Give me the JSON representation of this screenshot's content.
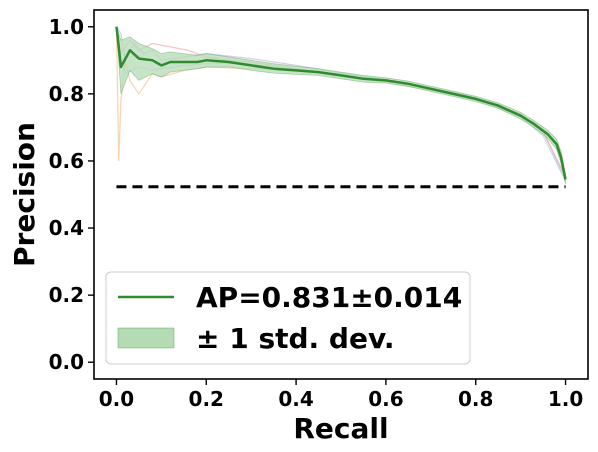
{
  "chart_data": {
    "type": "line",
    "xlabel": "Recall",
    "ylabel": "Precision",
    "xlim": [
      -0.05,
      1.05
    ],
    "ylim": [
      -0.05,
      1.05
    ],
    "xticks": [
      0.0,
      0.2,
      0.4,
      0.6,
      0.8,
      1.0
    ],
    "xtick_labels": [
      "0.0",
      "0.2",
      "0.4",
      "0.6",
      "0.8",
      "1.0"
    ],
    "yticks": [
      0.0,
      0.2,
      0.4,
      0.6,
      0.8,
      1.0
    ],
    "ytick_labels": [
      "0.0",
      "0.2",
      "0.4",
      "0.6",
      "0.8",
      "1.0"
    ],
    "grid": false,
    "legend_position": "bottom-left",
    "colors": {
      "mean": "#2e8b2e",
      "band": "#b5dbb5",
      "baseline": "#000000",
      "fold_a": "#f6c89a",
      "fold_b": "#c8c3e6",
      "fold_c": "#f3b4b4",
      "fold_d": "#b7d8ea"
    },
    "legend": [
      {
        "label": "AP=0.831±0.014",
        "kind": "line"
      },
      {
        "label": "± 1 std. dev.",
        "kind": "band"
      }
    ],
    "series": [
      {
        "role": "mean",
        "x": [
          0.0,
          0.01,
          0.03,
          0.05,
          0.08,
          0.1,
          0.12,
          0.15,
          0.18,
          0.2,
          0.25,
          0.3,
          0.35,
          0.4,
          0.45,
          0.5,
          0.55,
          0.6,
          0.65,
          0.7,
          0.75,
          0.8,
          0.85,
          0.9,
          0.93,
          0.96,
          0.98,
          0.99,
          1.0
        ],
        "y": [
          1.0,
          0.88,
          0.93,
          0.905,
          0.9,
          0.885,
          0.895,
          0.895,
          0.895,
          0.9,
          0.895,
          0.885,
          0.875,
          0.87,
          0.865,
          0.855,
          0.845,
          0.84,
          0.83,
          0.815,
          0.8,
          0.785,
          0.765,
          0.735,
          0.71,
          0.68,
          0.65,
          0.61,
          0.545
        ]
      },
      {
        "role": "band_upper",
        "x": [
          0.0,
          0.01,
          0.03,
          0.05,
          0.08,
          0.1,
          0.12,
          0.15,
          0.18,
          0.2,
          0.25,
          0.3,
          0.35,
          0.4,
          0.45,
          0.5,
          0.55,
          0.6,
          0.65,
          0.7,
          0.75,
          0.8,
          0.85,
          0.9,
          0.93,
          0.96,
          0.98,
          0.99,
          1.0
        ],
        "y": [
          1.0,
          0.96,
          0.97,
          0.95,
          0.935,
          0.92,
          0.925,
          0.92,
          0.915,
          0.92,
          0.91,
          0.9,
          0.89,
          0.882,
          0.875,
          0.865,
          0.855,
          0.848,
          0.838,
          0.823,
          0.808,
          0.793,
          0.773,
          0.745,
          0.72,
          0.692,
          0.665,
          0.628,
          0.56
        ]
      },
      {
        "role": "band_lower",
        "x": [
          0.0,
          0.01,
          0.03,
          0.05,
          0.08,
          0.1,
          0.12,
          0.15,
          0.18,
          0.2,
          0.25,
          0.3,
          0.35,
          0.4,
          0.45,
          0.5,
          0.55,
          0.6,
          0.65,
          0.7,
          0.75,
          0.8,
          0.85,
          0.9,
          0.93,
          0.96,
          0.98,
          0.99,
          1.0
        ],
        "y": [
          1.0,
          0.8,
          0.87,
          0.84,
          0.86,
          0.85,
          0.865,
          0.87,
          0.875,
          0.88,
          0.88,
          0.87,
          0.862,
          0.858,
          0.855,
          0.845,
          0.835,
          0.832,
          0.822,
          0.807,
          0.792,
          0.777,
          0.757,
          0.725,
          0.7,
          0.668,
          0.635,
          0.592,
          0.53
        ]
      },
      {
        "role": "fold",
        "color_key": "fold_a",
        "x": [
          0.0,
          0.005,
          0.01,
          0.02,
          0.03,
          0.05,
          0.08,
          0.1,
          0.15,
          0.2,
          0.3,
          0.4,
          0.5,
          0.6,
          0.7,
          0.8,
          0.9,
          0.95,
          1.0
        ],
        "y": [
          1.0,
          0.6,
          0.78,
          0.9,
          0.84,
          0.8,
          0.86,
          0.85,
          0.87,
          0.88,
          0.875,
          0.87,
          0.855,
          0.835,
          0.81,
          0.785,
          0.735,
          0.69,
          0.55
        ]
      },
      {
        "role": "fold",
        "color_key": "fold_b",
        "x": [
          0.0,
          0.01,
          0.02,
          0.04,
          0.06,
          0.08,
          0.1,
          0.15,
          0.2,
          0.3,
          0.4,
          0.5,
          0.6,
          0.7,
          0.8,
          0.9,
          0.95,
          1.0
        ],
        "y": [
          1.0,
          0.98,
          0.9,
          0.95,
          0.92,
          0.93,
          0.9,
          0.91,
          0.92,
          0.905,
          0.885,
          0.862,
          0.842,
          0.818,
          0.79,
          0.74,
          0.69,
          0.54
        ]
      },
      {
        "role": "fold",
        "color_key": "fold_c",
        "x": [
          0.0,
          0.01,
          0.03,
          0.05,
          0.08,
          0.12,
          0.16,
          0.2,
          0.25,
          0.3,
          0.4,
          0.5,
          0.6,
          0.7,
          0.8,
          0.9,
          0.95,
          1.0
        ],
        "y": [
          1.0,
          0.92,
          0.96,
          0.93,
          0.95,
          0.94,
          0.93,
          0.91,
          0.9,
          0.895,
          0.875,
          0.857,
          0.838,
          0.815,
          0.788,
          0.738,
          0.685,
          0.555
        ]
      },
      {
        "role": "fold",
        "color_key": "fold_d",
        "x": [
          0.0,
          0.01,
          0.02,
          0.05,
          0.08,
          0.1,
          0.15,
          0.2,
          0.3,
          0.4,
          0.5,
          0.6,
          0.7,
          0.8,
          0.9,
          0.95,
          1.0
        ],
        "y": [
          1.0,
          0.9,
          0.86,
          0.88,
          0.87,
          0.875,
          0.885,
          0.89,
          0.89,
          0.872,
          0.853,
          0.84,
          0.812,
          0.782,
          0.732,
          0.675,
          0.54
        ]
      },
      {
        "role": "baseline",
        "x": [
          0.0,
          1.0
        ],
        "y": [
          0.523,
          0.523
        ]
      }
    ]
  }
}
